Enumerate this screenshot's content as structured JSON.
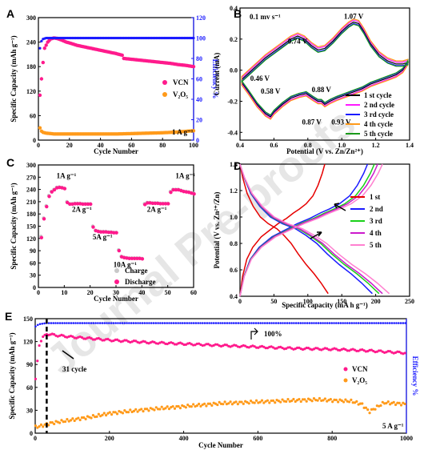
{
  "watermark": "Journal Pre-proofs",
  "chart_data": [
    {
      "panel": "A",
      "type": "scatter",
      "xlabel": "Cycle Number",
      "ylabel": "Specific Capacity (mAh g⁻¹)",
      "y2label": "Efficiency %",
      "xlim": [
        0,
        100
      ],
      "ylim": [
        0,
        300
      ],
      "y2lim": [
        0,
        120
      ],
      "xticks": [
        "0",
        "20",
        "40",
        "60",
        "80",
        "100"
      ],
      "yticks": [
        "0",
        "60",
        "120",
        "180",
        "240",
        "300"
      ],
      "y2ticks": [
        "0",
        "20",
        "40",
        "60",
        "80",
        "100",
        "120"
      ],
      "annotation": "1 A g⁻¹",
      "series": [
        {
          "name": "VCN",
          "color": "#ff1a8c",
          "x": [
            1,
            2,
            3,
            4,
            6,
            8,
            10,
            12,
            15,
            18,
            20,
            25,
            30,
            35,
            40,
            45,
            50,
            54,
            55,
            60,
            65,
            70,
            75,
            80,
            85,
            90,
            95,
            100
          ],
          "y": [
            110,
            150,
            190,
            225,
            240,
            248,
            250,
            249,
            245,
            240,
            238,
            232,
            228,
            224,
            220,
            216,
            212,
            208,
            200,
            198,
            196,
            194,
            192,
            190,
            188,
            185,
            183,
            180
          ]
        },
        {
          "name": "V₂O₅",
          "color": "#ff9a1a",
          "x": [
            1,
            2,
            3,
            5,
            8,
            10,
            15,
            20,
            30,
            40,
            50,
            60,
            70,
            80,
            90,
            100
          ],
          "y": [
            30,
            22,
            19,
            17,
            16,
            15,
            15,
            15,
            15,
            15,
            15,
            16,
            17,
            18,
            20,
            23
          ]
        },
        {
          "name": "VCN efficiency",
          "axis": "y2",
          "color": "#1a1aff",
          "x": [
            1,
            2,
            3,
            5,
            10,
            20,
            40,
            60,
            80,
            100
          ],
          "y": [
            90,
            97,
            99,
            100,
            100,
            100,
            100,
            100,
            100,
            100
          ]
        }
      ]
    },
    {
      "panel": "B",
      "type": "line",
      "xlabel": "Potential (V vs. Zn/Zn²⁺)",
      "ylabel": "Current (mA)",
      "xlim": [
        0.4,
        1.4
      ],
      "ylim": [
        -0.45,
        0.4
      ],
      "xticks": [
        "0.4",
        "0.6",
        "0.8",
        "1.0",
        "1.2",
        "1.4"
      ],
      "yticks": [
        "-0.4",
        "-0.2",
        "0.0",
        "0.2",
        "0.4"
      ],
      "annotation": "0.1 mv s⁻¹",
      "peak_labels": [
        "0.74 V",
        "1.07 V",
        "0.46 V",
        "0.58 V",
        "0.88 V",
        "0.87 V",
        "0.93 V"
      ],
      "series": [
        {
          "name": "1 st cycle",
          "color": "#000000"
        },
        {
          "name": "2 nd cycle",
          "color": "#ff1aff"
        },
        {
          "name": "3 rd cycle",
          "color": "#1a1aff"
        },
        {
          "name": "4 th cycle",
          "color": "#ff9a1a"
        },
        {
          "name": "5 th cycle",
          "color": "#1a9a1a"
        }
      ],
      "upper_x": [
        0.41,
        0.45,
        0.5,
        0.55,
        0.6,
        0.65,
        0.7,
        0.74,
        0.78,
        0.82,
        0.86,
        0.9,
        0.95,
        1.0,
        1.04,
        1.07,
        1.1,
        1.13,
        1.17,
        1.22,
        1.27,
        1.32,
        1.36,
        1.39
      ],
      "upper_y": [
        -0.06,
        -0.02,
        0.03,
        0.08,
        0.12,
        0.16,
        0.2,
        0.22,
        0.2,
        0.16,
        0.13,
        0.14,
        0.19,
        0.25,
        0.29,
        0.31,
        0.3,
        0.25,
        0.17,
        0.1,
        0.06,
        0.04,
        0.04,
        0.05
      ],
      "lower_x": [
        1.39,
        1.36,
        1.32,
        1.27,
        1.22,
        1.17,
        1.12,
        1.07,
        1.02,
        0.97,
        0.93,
        0.9,
        0.88,
        0.86,
        0.83,
        0.79,
        0.75,
        0.7,
        0.65,
        0.6,
        0.58,
        0.55,
        0.5,
        0.45,
        0.41
      ],
      "lower_y": [
        0.05,
        0.0,
        -0.03,
        -0.05,
        -0.07,
        -0.09,
        -0.12,
        -0.14,
        -0.16,
        -0.18,
        -0.2,
        -0.22,
        -0.2,
        -0.2,
        -0.18,
        -0.15,
        -0.16,
        -0.18,
        -0.22,
        -0.27,
        -0.3,
        -0.28,
        -0.22,
        -0.14,
        -0.08
      ],
      "offsets": [
        0,
        0.012,
        -0.01,
        0.02,
        -0.015
      ]
    },
    {
      "panel": "C",
      "type": "scatter",
      "xlabel": "Cycle Number",
      "ylabel": "Specific Capacity (mAh g⁻¹)",
      "xlim": [
        0,
        60
      ],
      "ylim": [
        0,
        300
      ],
      "xticks": [
        "0",
        "10",
        "20",
        "30",
        "40",
        "50",
        "60"
      ],
      "yticks": [
        "0",
        "30",
        "60",
        "90",
        "120",
        "150",
        "180",
        "210",
        "240",
        "270",
        "300"
      ],
      "rate_labels": [
        "1A g⁻¹",
        "2A g⁻¹",
        "5A g⁻¹",
        "10A g⁻¹",
        "2A g⁻¹",
        "1A g⁻¹"
      ],
      "series": [
        {
          "name": "Charge",
          "color": "#c8c8c8",
          "x": [
            1,
            2,
            3,
            4,
            5,
            6,
            7,
            8,
            9,
            10,
            11,
            12,
            13,
            14,
            15,
            16,
            17,
            18,
            19,
            20,
            21,
            22,
            23,
            24,
            25,
            26,
            27,
            28,
            29,
            30,
            31,
            32,
            33,
            34,
            35,
            36,
            37,
            38,
            39,
            40,
            41,
            42,
            43,
            44,
            45,
            46,
            47,
            48,
            49,
            50,
            51,
            52,
            53,
            54,
            55,
            56,
            57,
            58,
            59,
            60
          ],
          "y": [
            125,
            170,
            200,
            225,
            235,
            240,
            245,
            246,
            245,
            243,
            210,
            205,
            205,
            206,
            206,
            206,
            205,
            205,
            205,
            205,
            150,
            140,
            138,
            137,
            137,
            137,
            136,
            136,
            135,
            135,
            92,
            76,
            74,
            73,
            72,
            72,
            72,
            72,
            72,
            71,
            205,
            208,
            208,
            207,
            207,
            207,
            206,
            206,
            206,
            206,
            235,
            240,
            240,
            240,
            238,
            236,
            235,
            234,
            232,
            230
          ]
        },
        {
          "name": "Discharge",
          "color": "#ff1a8c",
          "x": [
            1,
            2,
            3,
            4,
            5,
            6,
            7,
            8,
            9,
            10,
            11,
            12,
            13,
            14,
            15,
            16,
            17,
            18,
            19,
            20,
            21,
            22,
            23,
            24,
            25,
            26,
            27,
            28,
            29,
            30,
            31,
            32,
            33,
            34,
            35,
            36,
            37,
            38,
            39,
            40,
            41,
            42,
            43,
            44,
            45,
            46,
            47,
            48,
            49,
            50,
            51,
            52,
            53,
            54,
            55,
            56,
            57,
            58,
            59,
            60
          ],
          "y": [
            122,
            168,
            198,
            223,
            234,
            239,
            244,
            245,
            244,
            242,
            208,
            204,
            204,
            205,
            205,
            205,
            204,
            204,
            204,
            204,
            148,
            139,
            137,
            136,
            136,
            136,
            135,
            135,
            134,
            134,
            90,
            75,
            73,
            72,
            71,
            71,
            71,
            71,
            71,
            70,
            203,
            207,
            207,
            206,
            206,
            206,
            205,
            205,
            205,
            205,
            233,
            239,
            239,
            239,
            237,
            235,
            234,
            233,
            231,
            229
          ]
        }
      ]
    },
    {
      "panel": "D",
      "type": "line",
      "xlabel": "Specific capacity (mA h g⁻¹)",
      "ylabel": "Potential (V vs. Zn²⁺/Zn)",
      "xlim": [
        0,
        250
      ],
      "ylim": [
        0.4,
        1.4
      ],
      "xticks": [
        "0",
        "50",
        "100",
        "150",
        "200",
        "250"
      ],
      "yticks": [
        "0.4",
        "0.6",
        "0.8",
        "1.0",
        "1.2",
        "1.4"
      ],
      "series": [
        {
          "name": "1 st",
          "color": "#e60000",
          "cap": 130,
          "chg_end": 125
        },
        {
          "name": "2 nd",
          "color": "#1a1aff",
          "cap": 195,
          "chg_end": 188
        },
        {
          "name": "3 rd",
          "color": "#1ad11a",
          "cap": 205,
          "chg_end": 198
        },
        {
          "name": "4 th",
          "color": "#cc1acc",
          "cap": 210,
          "chg_end": 203
        },
        {
          "name": "5 th",
          "color": "#ff80d0",
          "cap": 220,
          "chg_end": 210
        }
      ],
      "dis_frac": [
        0,
        0.03,
        0.08,
        0.15,
        0.23,
        0.32,
        0.42,
        0.5,
        0.58,
        0.66,
        0.75,
        0.84,
        0.92,
        0.97,
        1.0
      ],
      "dis_v": [
        1.4,
        1.3,
        1.18,
        1.08,
        1.0,
        0.95,
        0.91,
        0.86,
        0.8,
        0.72,
        0.64,
        0.57,
        0.5,
        0.45,
        0.42
      ],
      "chg_frac": [
        0,
        0.03,
        0.08,
        0.15,
        0.25,
        0.35,
        0.45,
        0.55,
        0.63,
        0.7,
        0.78,
        0.86,
        0.92,
        0.97,
        1.0
      ],
      "chg_v": [
        0.4,
        0.55,
        0.68,
        0.77,
        0.85,
        0.9,
        0.95,
        0.99,
        1.03,
        1.06,
        1.1,
        1.16,
        1.24,
        1.33,
        1.4
      ]
    },
    {
      "panel": "E",
      "type": "scatter",
      "xlabel": "Cycle Number",
      "ylabel": "Specific Capacity (mAh g⁻¹)",
      "y2label": "Efficiency %",
      "xlim": [
        0,
        1000
      ],
      "ylim": [
        0,
        150
      ],
      "xticks": [
        "0",
        "200",
        "400",
        "600",
        "800",
        "1000"
      ],
      "yticks": [
        "0",
        "30",
        "60",
        "90",
        "120",
        "150"
      ],
      "annotation_cycle": "31 cycle",
      "annotation_eff": "100%",
      "annotation_rate": "5 A g⁻¹",
      "series": [
        {
          "name": "VCN",
          "color": "#ff1a8c",
          "x": [
            1,
            10,
            20,
            31,
            60,
            100,
            150,
            200,
            300,
            400,
            500,
            600,
            700,
            800,
            900,
            1000
          ],
          "y": [
            70,
            115,
            125,
            130,
            128,
            126,
            124,
            122,
            119,
            117,
            115,
            113,
            111,
            110,
            108,
            105
          ]
        },
        {
          "name": "V₂O₅",
          "color": "#ff9a1a",
          "x": [
            1,
            20,
            40,
            80,
            120,
            160,
            200,
            300,
            400,
            500,
            600,
            700,
            760,
            800,
            850,
            880,
            900,
            940,
            1000
          ],
          "y": [
            8,
            10,
            13,
            16,
            19,
            22,
            26,
            31,
            35,
            39,
            41,
            43,
            44,
            43,
            42,
            38,
            28,
            40,
            38
          ]
        },
        {
          "name": "VCN efficiency",
          "axis": "y2",
          "color": "#1a1aff",
          "x": [
            1,
            10,
            30,
            100,
            200,
            400,
            600,
            800,
            1000
          ],
          "y": [
            97,
            99,
            100,
            100,
            100,
            100,
            100,
            100,
            100
          ]
        }
      ]
    }
  ]
}
